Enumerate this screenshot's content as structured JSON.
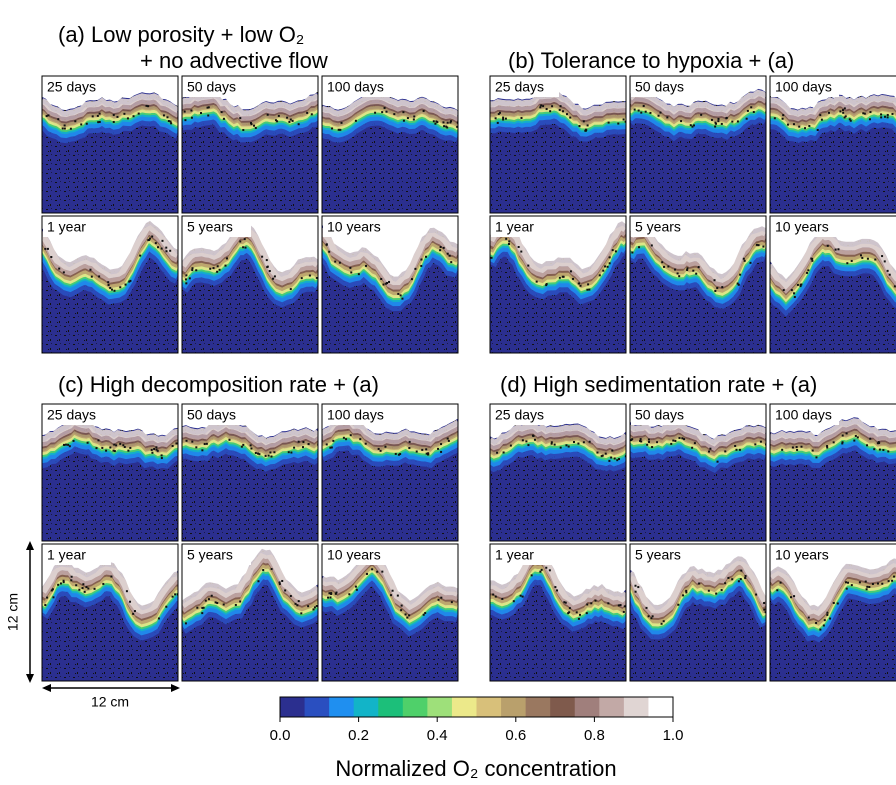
{
  "figure": {
    "groups": [
      {
        "title": [
          "(a) Low porosity + low O₂",
          "+ no advective flow"
        ],
        "panels": [
          "25 days",
          "50 days",
          "100 days",
          "1 year",
          "5 years",
          "10 years"
        ]
      },
      {
        "title": [
          "(b) Tolerance to hypoxia + (a)"
        ],
        "panels": [
          "25 days",
          "50 days",
          "100 days",
          "1 year",
          "5 years",
          "10 years"
        ]
      },
      {
        "title": [
          "(c) High decomposition rate + (a)"
        ],
        "panels": [
          "25 days",
          "50 days",
          "100 days",
          "1 year",
          "5 years",
          "10 years"
        ]
      },
      {
        "title": [
          "(d) High sedimentation rate + (a)"
        ],
        "panels": [
          "25 days",
          "50 days",
          "100 days",
          "1 year",
          "5 years",
          "10 years"
        ]
      }
    ],
    "scale_bars": {
      "vertical": "12 cm",
      "horizontal": "12 cm"
    },
    "colorbar": {
      "label": "Normalized O₂ concentration",
      "lim": [
        0,
        1
      ],
      "colors": [
        "#2b2f8f",
        "#2a4fc0",
        "#1f8ff0",
        "#12b4c8",
        "#1cbf7a",
        "#4fd06a",
        "#9ee07a",
        "#ece98a",
        "#d8c07a",
        "#b9a06c",
        "#9a7860",
        "#7f5a4c",
        "#a07f7c",
        "#c2a9a6",
        "#e0d5d3",
        "#ffffff"
      ],
      "ticks": [
        {
          "value": 0,
          "label": "0.0"
        },
        {
          "value": 0.2,
          "label": "0.2"
        },
        {
          "value": 0.4,
          "label": "0.4"
        },
        {
          "value": 0.6,
          "label": "0.6"
        },
        {
          "value": 0.8,
          "label": "0.8"
        },
        {
          "value": 1,
          "label": "1.0"
        }
      ]
    }
  }
}
